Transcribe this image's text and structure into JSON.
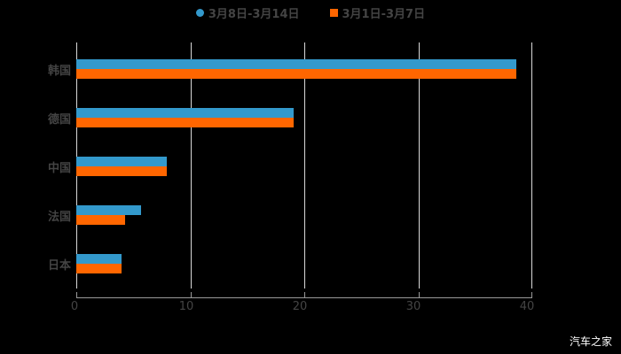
{
  "legend": [
    {
      "label": "3月8日-3月14日",
      "color": "#3399cc",
      "marker": "circle"
    },
    {
      "label": "3月1日-3月7日",
      "color": "#ff6600",
      "marker": "square"
    }
  ],
  "xaxis": {
    "ticks": [
      "0",
      "10",
      "20",
      "30",
      "40"
    ]
  },
  "categories": [
    "韩国",
    "德国",
    "中国",
    "法国",
    "日本"
  ],
  "watermark": "汽车之家",
  "chart_data": {
    "type": "bar",
    "orientation": "horizontal",
    "title": "",
    "xlabel": "",
    "ylabel": "",
    "categories": [
      "韩国",
      "德国",
      "中国",
      "法国",
      "日本"
    ],
    "series": [
      {
        "name": "3月8日-3月14日",
        "color": "#3399cc",
        "values": [
          38.6,
          19.1,
          7.9,
          5.7,
          4.0
        ]
      },
      {
        "name": "3月1日-3月7日",
        "color": "#ff6600",
        "values": [
          38.6,
          19.1,
          7.9,
          4.3,
          4.0
        ]
      }
    ],
    "xlim": [
      0,
      40
    ],
    "xticks": [
      0,
      10,
      20,
      30,
      40
    ],
    "grid": true,
    "legend_position": "top"
  }
}
